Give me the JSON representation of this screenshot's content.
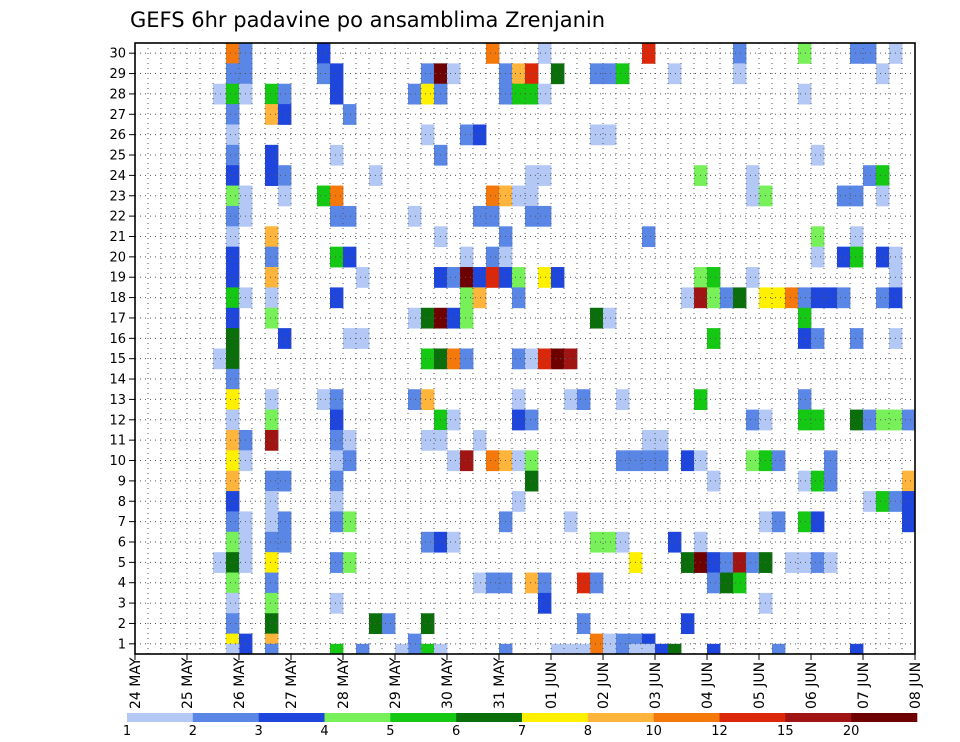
{
  "chart_data": {
    "type": "heatmap",
    "title": "GEFS 6hr padavine po ansamblima Zrenjanin",
    "y_ticks": [
      "1",
      "2",
      "3",
      "4",
      "5",
      "6",
      "7",
      "8",
      "9",
      "10",
      "11",
      "12",
      "13",
      "14",
      "15",
      "16",
      "17",
      "18",
      "19",
      "20",
      "21",
      "22",
      "23",
      "24",
      "25",
      "26",
      "27",
      "28",
      "29",
      "30"
    ],
    "x_ticks": [
      "24 MAY",
      "25 MAY",
      "26 MAY",
      "27 MAY",
      "28 MAY",
      "29 MAY",
      "30 MAY",
      "31 MAY",
      "01 JUN",
      "02 JUN",
      "03 JUN",
      "04 JUN",
      "05 JUN",
      "06 JUN",
      "07 JUN",
      "08 JUN"
    ],
    "ylim": [
      0.5,
      30.5
    ],
    "xlim": [
      0,
      60
    ],
    "grid": true,
    "legend": {
      "placement": "bottom",
      "labels": [
        "1",
        "2",
        "3",
        "4",
        "5",
        "6",
        "7",
        "8",
        "10",
        "12",
        "15",
        "20"
      ],
      "colors": [
        "#b4c8f5",
        "#5a87e6",
        "#1e46dc",
        "#78f05a",
        "#14c814",
        "#0a6e0a",
        "#fff000",
        "#ffb43c",
        "#f5780a",
        "#dc280a",
        "#a01414",
        "#6e0000"
      ]
    },
    "cells": [
      [
        7,
        30,
        9
      ],
      [
        8,
        30,
        2
      ],
      [
        14,
        30,
        3
      ],
      [
        27,
        30,
        9
      ],
      [
        31,
        30,
        1
      ],
      [
        39,
        30,
        10
      ],
      [
        46,
        30,
        2
      ],
      [
        51,
        30,
        4
      ],
      [
        55,
        30,
        2
      ],
      [
        56,
        30,
        2
      ],
      [
        58,
        30,
        1
      ],
      [
        7,
        29,
        2
      ],
      [
        8,
        29,
        2
      ],
      [
        14,
        29,
        2
      ],
      [
        15,
        29,
        3
      ],
      [
        22,
        29,
        2
      ],
      [
        23,
        29,
        12
      ],
      [
        24,
        29,
        1
      ],
      [
        28,
        29,
        2
      ],
      [
        29,
        29,
        8
      ],
      [
        30,
        29,
        10
      ],
      [
        32,
        29,
        6
      ],
      [
        35,
        29,
        2
      ],
      [
        36,
        29,
        2
      ],
      [
        37,
        29,
        5
      ],
      [
        41,
        29,
        1
      ],
      [
        46,
        29,
        1
      ],
      [
        57,
        29,
        1
      ],
      [
        6,
        28,
        1
      ],
      [
        7,
        28,
        5
      ],
      [
        8,
        28,
        1
      ],
      [
        10,
        28,
        5
      ],
      [
        11,
        28,
        2
      ],
      [
        15,
        28,
        3
      ],
      [
        21,
        28,
        2
      ],
      [
        22,
        28,
        7
      ],
      [
        23,
        28,
        2
      ],
      [
        28,
        28,
        2
      ],
      [
        29,
        28,
        5
      ],
      [
        30,
        28,
        5
      ],
      [
        31,
        28,
        1
      ],
      [
        51,
        28,
        1
      ],
      [
        7,
        27,
        2
      ],
      [
        10,
        27,
        8
      ],
      [
        11,
        27,
        3
      ],
      [
        16,
        27,
        2
      ],
      [
        7,
        26,
        1
      ],
      [
        22,
        26,
        1
      ],
      [
        25,
        26,
        2
      ],
      [
        26,
        26,
        3
      ],
      [
        35,
        26,
        1
      ],
      [
        36,
        26,
        1
      ],
      [
        7,
        25,
        2
      ],
      [
        10,
        25,
        3
      ],
      [
        15,
        25,
        1
      ],
      [
        23,
        25,
        2
      ],
      [
        52,
        25,
        1
      ],
      [
        7,
        24,
        3
      ],
      [
        10,
        24,
        3
      ],
      [
        11,
        24,
        2
      ],
      [
        18,
        24,
        1
      ],
      [
        30,
        24,
        1
      ],
      [
        31,
        24,
        1
      ],
      [
        43,
        24,
        4
      ],
      [
        47,
        24,
        1
      ],
      [
        56,
        24,
        2
      ],
      [
        57,
        24,
        5
      ],
      [
        7,
        23,
        4
      ],
      [
        8,
        23,
        1
      ],
      [
        11,
        23,
        1
      ],
      [
        14,
        23,
        5
      ],
      [
        15,
        23,
        9
      ],
      [
        27,
        23,
        9
      ],
      [
        28,
        23,
        8
      ],
      [
        29,
        23,
        1
      ],
      [
        30,
        23,
        1
      ],
      [
        47,
        23,
        1
      ],
      [
        48,
        23,
        4
      ],
      [
        54,
        23,
        2
      ],
      [
        55,
        23,
        2
      ],
      [
        57,
        23,
        1
      ],
      [
        7,
        22,
        2
      ],
      [
        8,
        22,
        1
      ],
      [
        15,
        22,
        2
      ],
      [
        16,
        22,
        2
      ],
      [
        21,
        22,
        1
      ],
      [
        26,
        22,
        2
      ],
      [
        27,
        22,
        2
      ],
      [
        30,
        22,
        2
      ],
      [
        31,
        22,
        2
      ],
      [
        7,
        21,
        1
      ],
      [
        10,
        21,
        8
      ],
      [
        23,
        21,
        1
      ],
      [
        28,
        21,
        2
      ],
      [
        39,
        21,
        2
      ],
      [
        52,
        21,
        4
      ],
      [
        55,
        21,
        1
      ],
      [
        7,
        20,
        3
      ],
      [
        10,
        20,
        2
      ],
      [
        15,
        20,
        5
      ],
      [
        16,
        20,
        3
      ],
      [
        25,
        20,
        1
      ],
      [
        27,
        20,
        2
      ],
      [
        28,
        20,
        1
      ],
      [
        52,
        20,
        1
      ],
      [
        54,
        20,
        3
      ],
      [
        55,
        20,
        5
      ],
      [
        57,
        20,
        3
      ],
      [
        58,
        20,
        1
      ],
      [
        7,
        19,
        3
      ],
      [
        10,
        19,
        8
      ],
      [
        17,
        19,
        1
      ],
      [
        23,
        19,
        3
      ],
      [
        24,
        19,
        2
      ],
      [
        25,
        19,
        12
      ],
      [
        26,
        19,
        3
      ],
      [
        27,
        19,
        10
      ],
      [
        28,
        19,
        3
      ],
      [
        29,
        19,
        4
      ],
      [
        31,
        19,
        7
      ],
      [
        32,
        19,
        3
      ],
      [
        43,
        19,
        4
      ],
      [
        44,
        19,
        5
      ],
      [
        47,
        19,
        1
      ],
      [
        58,
        19,
        1
      ],
      [
        7,
        18,
        5
      ],
      [
        8,
        18,
        1
      ],
      [
        10,
        18,
        1
      ],
      [
        15,
        18,
        3
      ],
      [
        25,
        18,
        4
      ],
      [
        26,
        18,
        8
      ],
      [
        29,
        18,
        2
      ],
      [
        42,
        18,
        1
      ],
      [
        43,
        18,
        11
      ],
      [
        44,
        18,
        4
      ],
      [
        45,
        18,
        2
      ],
      [
        46,
        18,
        6
      ],
      [
        48,
        18,
        7
      ],
      [
        49,
        18,
        7
      ],
      [
        50,
        18,
        9
      ],
      [
        51,
        18,
        2
      ],
      [
        52,
        18,
        3
      ],
      [
        53,
        18,
        3
      ],
      [
        54,
        18,
        2
      ],
      [
        57,
        18,
        2
      ],
      [
        58,
        18,
        3
      ],
      [
        7,
        17,
        3
      ],
      [
        10,
        17,
        4
      ],
      [
        21,
        17,
        1
      ],
      [
        22,
        17,
        6
      ],
      [
        23,
        17,
        12
      ],
      [
        24,
        17,
        3
      ],
      [
        25,
        17,
        4
      ],
      [
        35,
        17,
        6
      ],
      [
        36,
        17,
        1
      ],
      [
        51,
        17,
        5
      ],
      [
        7,
        16,
        6
      ],
      [
        11,
        16,
        3
      ],
      [
        16,
        16,
        1
      ],
      [
        17,
        16,
        1
      ],
      [
        44,
        16,
        5
      ],
      [
        51,
        16,
        3
      ],
      [
        52,
        16,
        2
      ],
      [
        55,
        16,
        2
      ],
      [
        58,
        16,
        1
      ],
      [
        6,
        15,
        1
      ],
      [
        7,
        15,
        6
      ],
      [
        22,
        15,
        5
      ],
      [
        23,
        15,
        6
      ],
      [
        24,
        15,
        9
      ],
      [
        25,
        15,
        2
      ],
      [
        29,
        15,
        2
      ],
      [
        30,
        15,
        1
      ],
      [
        31,
        15,
        10
      ],
      [
        32,
        15,
        12
      ],
      [
        33,
        15,
        11
      ],
      [
        7,
        14,
        2
      ],
      [
        7,
        13,
        7
      ],
      [
        10,
        13,
        1
      ],
      [
        14,
        13,
        1
      ],
      [
        15,
        13,
        2
      ],
      [
        21,
        13,
        2
      ],
      [
        22,
        13,
        8
      ],
      [
        29,
        13,
        1
      ],
      [
        33,
        13,
        1
      ],
      [
        34,
        13,
        2
      ],
      [
        37,
        13,
        1
      ],
      [
        43,
        13,
        5
      ],
      [
        51,
        13,
        2
      ],
      [
        7,
        12,
        1
      ],
      [
        10,
        12,
        4
      ],
      [
        15,
        12,
        3
      ],
      [
        23,
        12,
        5
      ],
      [
        24,
        12,
        1
      ],
      [
        29,
        12,
        3
      ],
      [
        30,
        12,
        2
      ],
      [
        47,
        12,
        2
      ],
      [
        48,
        12,
        1
      ],
      [
        51,
        12,
        5
      ],
      [
        52,
        12,
        5
      ],
      [
        55,
        12,
        6
      ],
      [
        56,
        12,
        2
      ],
      [
        57,
        12,
        4
      ],
      [
        58,
        12,
        4
      ],
      [
        59,
        12,
        2
      ],
      [
        7,
        11,
        8
      ],
      [
        8,
        11,
        2
      ],
      [
        10,
        11,
        11
      ],
      [
        15,
        11,
        2
      ],
      [
        16,
        11,
        1
      ],
      [
        22,
        11,
        1
      ],
      [
        23,
        11,
        1
      ],
      [
        26,
        11,
        1
      ],
      [
        39,
        11,
        1
      ],
      [
        40,
        11,
        1
      ],
      [
        7,
        10,
        7
      ],
      [
        8,
        10,
        1
      ],
      [
        15,
        10,
        1
      ],
      [
        16,
        10,
        2
      ],
      [
        24,
        10,
        1
      ],
      [
        25,
        10,
        11
      ],
      [
        27,
        10,
        9
      ],
      [
        28,
        10,
        8
      ],
      [
        29,
        10,
        1
      ],
      [
        30,
        10,
        4
      ],
      [
        37,
        10,
        2
      ],
      [
        38,
        10,
        2
      ],
      [
        39,
        10,
        2
      ],
      [
        40,
        10,
        2
      ],
      [
        42,
        10,
        3
      ],
      [
        43,
        10,
        1
      ],
      [
        47,
        10,
        4
      ],
      [
        48,
        10,
        5
      ],
      [
        49,
        10,
        2
      ],
      [
        53,
        10,
        2
      ],
      [
        7,
        9,
        8
      ],
      [
        10,
        9,
        2
      ],
      [
        11,
        9,
        2
      ],
      [
        15,
        9,
        2
      ],
      [
        30,
        9,
        6
      ],
      [
        44,
        9,
        1
      ],
      [
        51,
        9,
        1
      ],
      [
        52,
        9,
        5
      ],
      [
        53,
        9,
        2
      ],
      [
        59,
        9,
        8
      ],
      [
        7,
        8,
        3
      ],
      [
        10,
        8,
        1
      ],
      [
        15,
        8,
        1
      ],
      [
        29,
        8,
        1
      ],
      [
        56,
        8,
        1
      ],
      [
        57,
        8,
        5
      ],
      [
        58,
        8,
        2
      ],
      [
        59,
        8,
        3
      ],
      [
        7,
        7,
        2
      ],
      [
        8,
        7,
        1
      ],
      [
        10,
        7,
        1
      ],
      [
        11,
        7,
        2
      ],
      [
        15,
        7,
        2
      ],
      [
        16,
        7,
        4
      ],
      [
        28,
        7,
        2
      ],
      [
        33,
        7,
        1
      ],
      [
        48,
        7,
        1
      ],
      [
        49,
        7,
        2
      ],
      [
        51,
        7,
        5
      ],
      [
        52,
        7,
        3
      ],
      [
        59,
        7,
        3
      ],
      [
        7,
        6,
        4
      ],
      [
        8,
        6,
        1
      ],
      [
        10,
        6,
        2
      ],
      [
        11,
        6,
        2
      ],
      [
        22,
        6,
        2
      ],
      [
        23,
        6,
        3
      ],
      [
        24,
        6,
        1
      ],
      [
        35,
        6,
        4
      ],
      [
        36,
        6,
        4
      ],
      [
        37,
        6,
        1
      ],
      [
        41,
        6,
        3
      ],
      [
        43,
        6,
        1
      ],
      [
        6,
        5,
        1
      ],
      [
        7,
        5,
        6
      ],
      [
        8,
        5,
        1
      ],
      [
        10,
        5,
        7
      ],
      [
        15,
        5,
        2
      ],
      [
        16,
        5,
        4
      ],
      [
        38,
        5,
        7
      ],
      [
        42,
        5,
        6
      ],
      [
        43,
        5,
        12
      ],
      [
        44,
        5,
        3
      ],
      [
        45,
        5,
        2
      ],
      [
        46,
        5,
        11
      ],
      [
        47,
        5,
        2
      ],
      [
        48,
        5,
        6
      ],
      [
        50,
        5,
        1
      ],
      [
        51,
        5,
        1
      ],
      [
        52,
        5,
        2
      ],
      [
        53,
        5,
        1
      ],
      [
        7,
        4,
        4
      ],
      [
        10,
        4,
        2
      ],
      [
        26,
        4,
        1
      ],
      [
        27,
        4,
        2
      ],
      [
        28,
        4,
        2
      ],
      [
        30,
        4,
        8
      ],
      [
        31,
        4,
        2
      ],
      [
        34,
        4,
        10
      ],
      [
        35,
        4,
        2
      ],
      [
        44,
        4,
        2
      ],
      [
        45,
        4,
        6
      ],
      [
        46,
        4,
        5
      ],
      [
        7,
        3,
        1
      ],
      [
        10,
        3,
        4
      ],
      [
        15,
        3,
        1
      ],
      [
        31,
        3,
        3
      ],
      [
        48,
        3,
        1
      ],
      [
        7,
        2,
        2
      ],
      [
        10,
        2,
        6
      ],
      [
        18,
        2,
        6
      ],
      [
        19,
        2,
        2
      ],
      [
        22,
        2,
        6
      ],
      [
        34,
        2,
        2
      ],
      [
        42,
        2,
        3
      ],
      [
        7,
        1,
        7
      ],
      [
        8,
        1,
        3
      ],
      [
        10,
        1,
        8
      ],
      [
        21,
        1,
        2
      ],
      [
        35,
        1,
        9
      ],
      [
        36,
        1,
        1
      ],
      [
        37,
        1,
        2
      ],
      [
        38,
        1,
        2
      ],
      [
        39,
        1,
        3
      ],
      [
        7,
        0,
        1
      ],
      [
        10,
        0,
        2
      ],
      [
        15,
        0,
        5
      ],
      [
        17,
        0,
        2
      ],
      [
        20,
        0,
        1
      ],
      [
        22,
        0,
        5
      ],
      [
        23,
        0,
        1
      ],
      [
        28,
        0,
        2
      ],
      [
        32,
        0,
        1
      ],
      [
        33,
        0,
        1
      ],
      [
        34,
        0,
        1
      ],
      [
        38,
        0,
        1
      ],
      [
        39,
        0,
        1
      ],
      [
        40,
        0,
        3
      ],
      [
        41,
        0,
        6
      ],
      [
        44,
        0,
        3
      ],
      [
        49,
        0,
        2
      ],
      [
        55,
        0,
        3
      ]
    ]
  }
}
